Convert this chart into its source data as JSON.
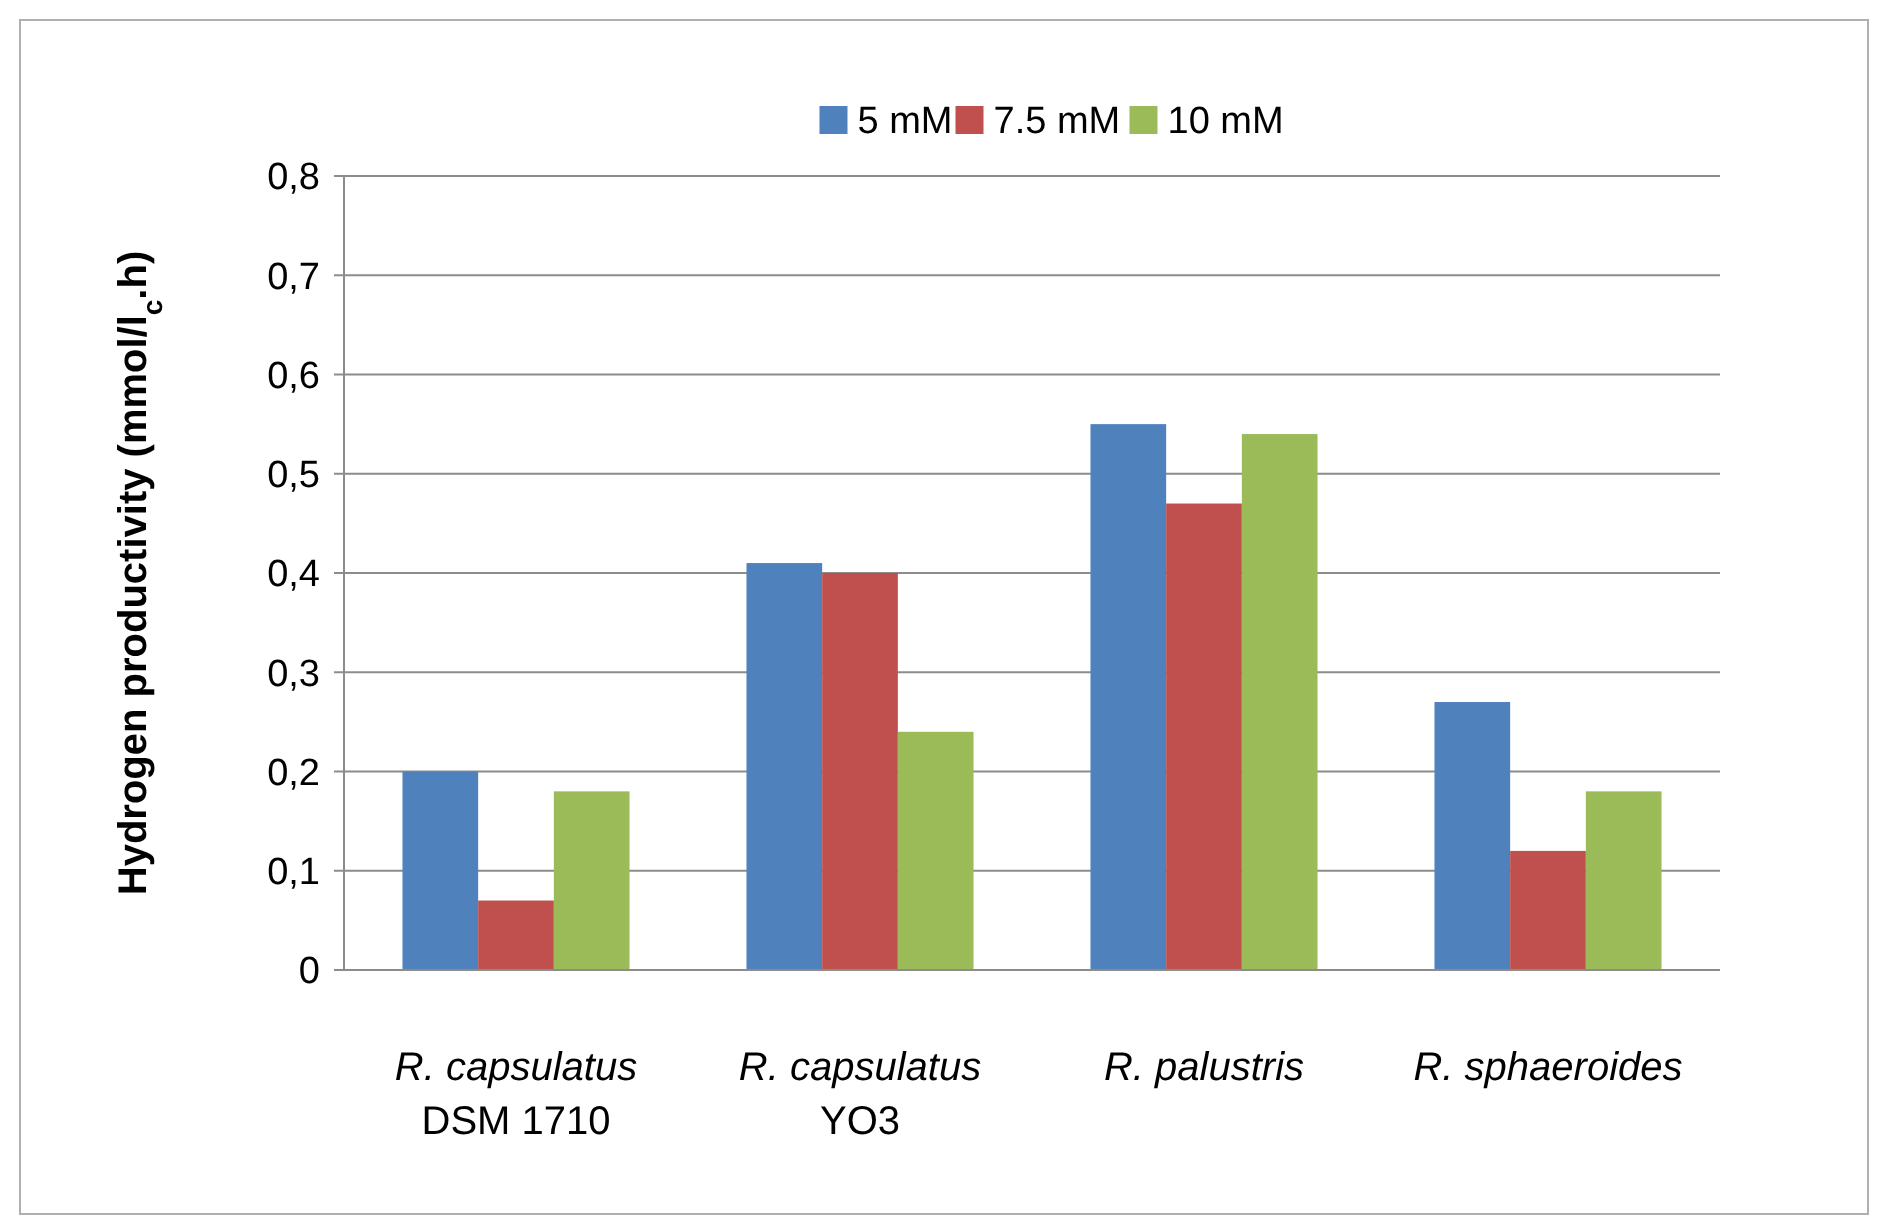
{
  "chart_data": {
    "type": "bar",
    "ylabel": "Hydrogen productivity (mmol/l$_{c}$.h)",
    "categories": [
      "R. capsulatus DSM 1710",
      "R. capsulatus YO3",
      "R. palustris",
      "R. sphaeroides"
    ],
    "series": [
      {
        "name": "5 mM",
        "color": "#4f81bd",
        "values": [
          0.2,
          0.41,
          0.55,
          0.27
        ]
      },
      {
        "name": "7.5 mM",
        "color": "#c0504d",
        "values": [
          0.07,
          0.4,
          0.47,
          0.12
        ]
      },
      {
        "name": "10 mM",
        "color": "#9bbb59",
        "values": [
          0.18,
          0.24,
          0.54,
          0.18
        ]
      }
    ],
    "ylim": [
      0,
      0.8
    ],
    "yticks": [
      0,
      {
        "value": 0.1,
        "label": "0,1"
      },
      {
        "value": 0.2,
        "label": "0,2"
      },
      {
        "value": 0.3,
        "label": "0,3"
      },
      {
        "value": 0.4,
        "label": "0,4"
      },
      {
        "value": 0.5,
        "label": "0,5"
      },
      {
        "value": 0.6,
        "label": "0,6"
      },
      {
        "value": 0.7,
        "label": "0,7"
      },
      {
        "value": 0.8,
        "label": "0,8"
      }
    ],
    "grid": "y",
    "legend": "top"
  }
}
